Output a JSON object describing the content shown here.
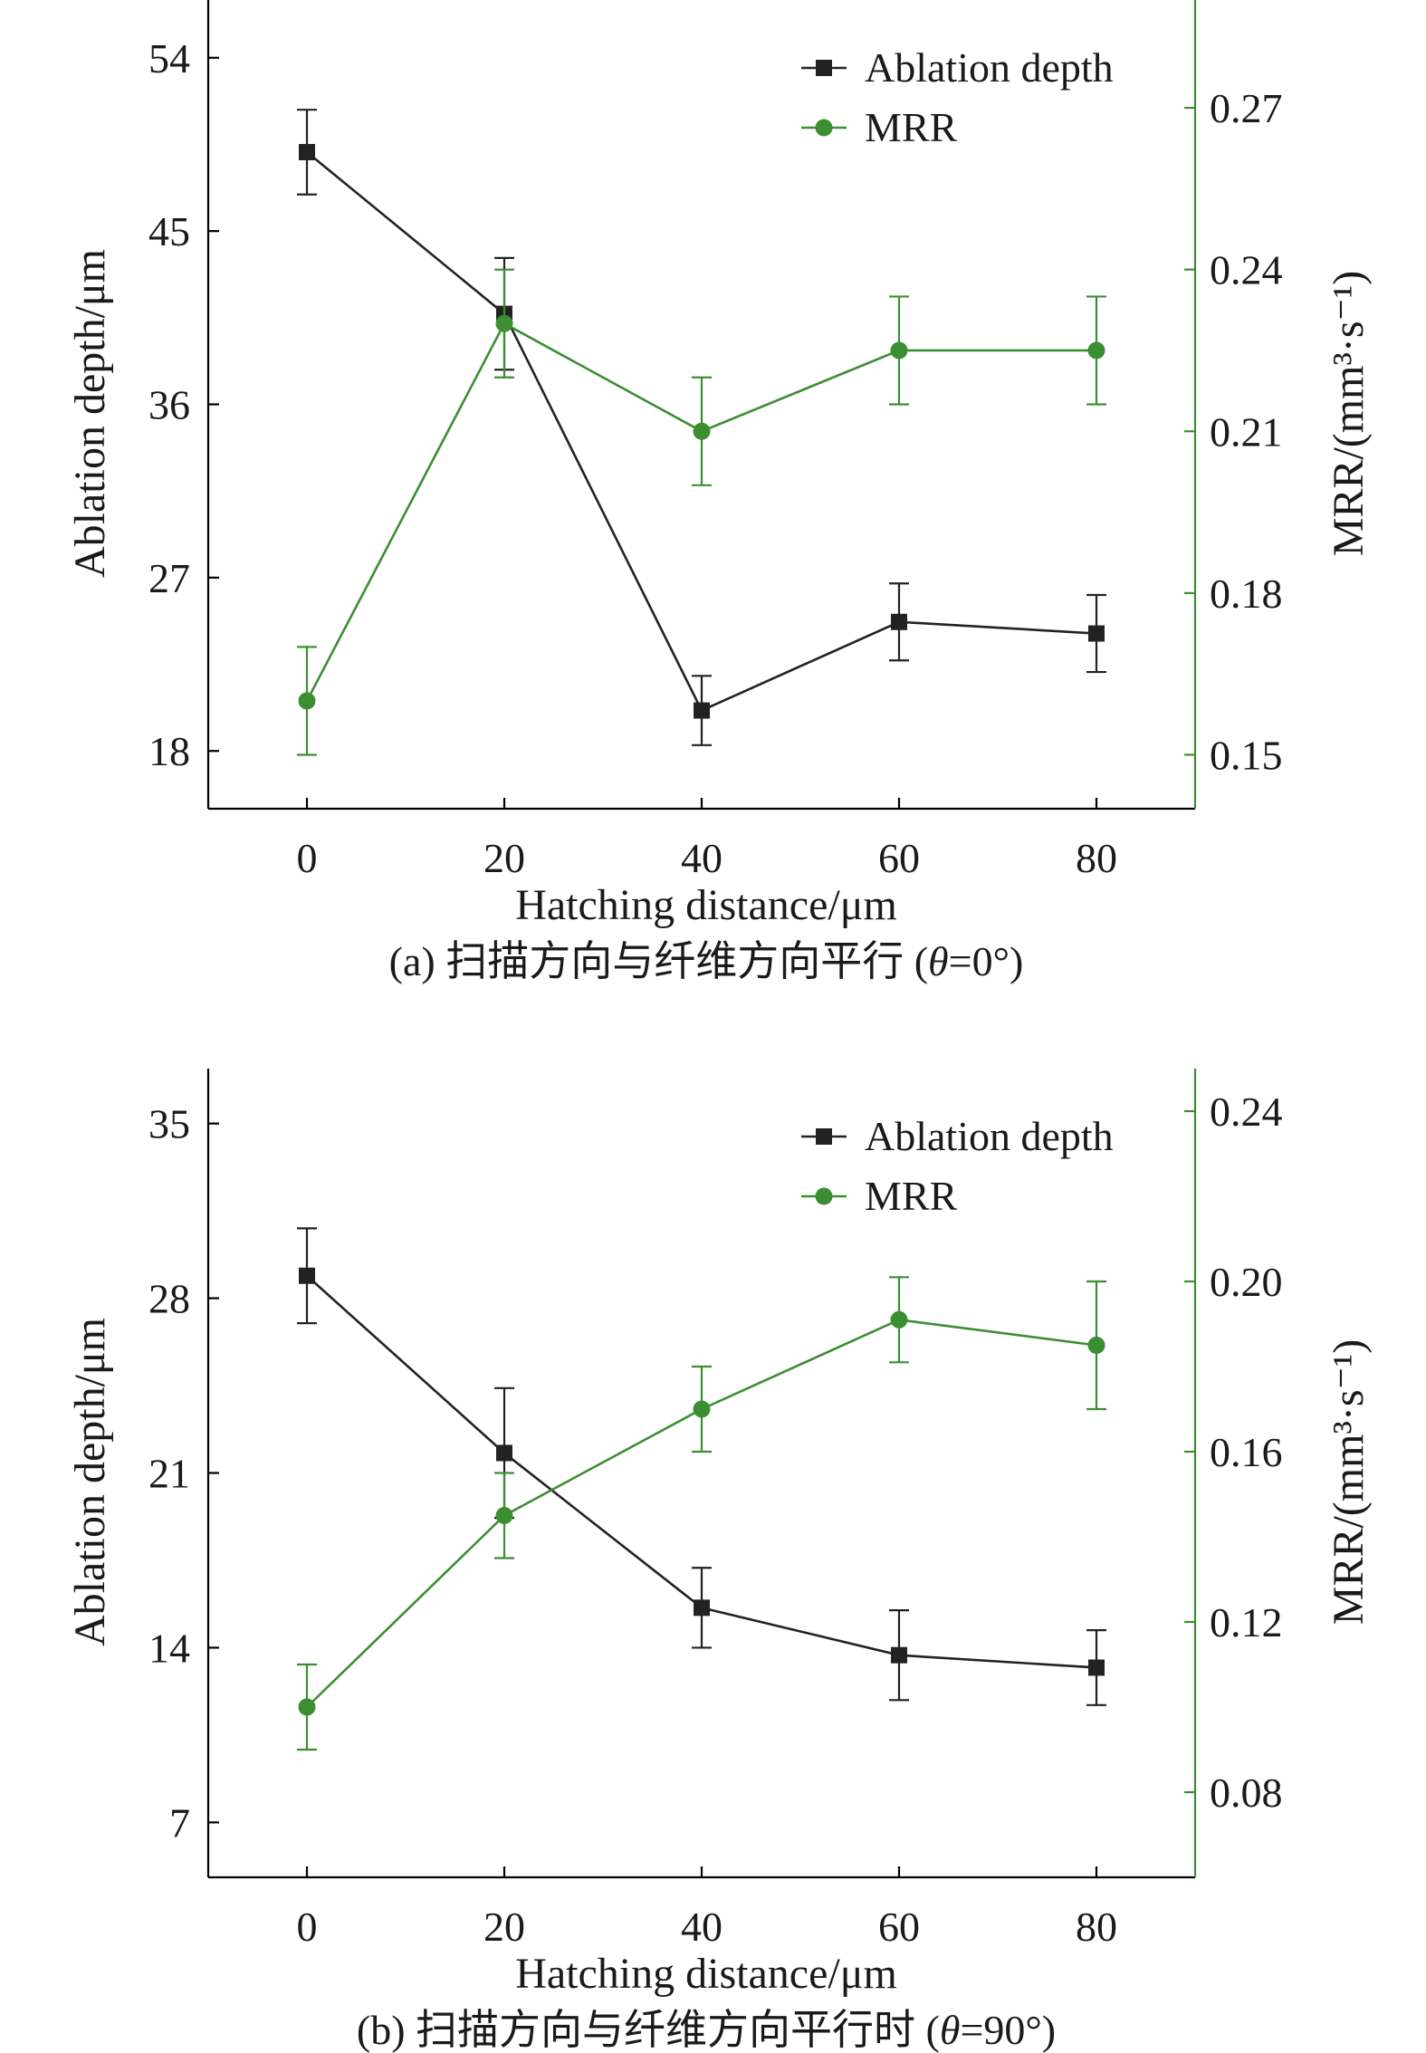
{
  "colors": {
    "series1": "#222222",
    "series2": "#3c8e32"
  },
  "chart_data": [
    {
      "type": "line",
      "caption": "(a) 扫描方向与纤维方向平行 (θ=0°)",
      "caption_parts": {
        "prefix": "(a) 扫描方向与纤维方向平行 (",
        "theta": "θ",
        "suffix": "=0°)"
      },
      "xlabel": "Hatching distance/μm",
      "ylabel": "Ablation depth/μm",
      "y2label": "MRR/(mm³·s⁻¹)",
      "x": [
        0,
        20,
        40,
        60,
        80
      ],
      "xticks": [
        "0",
        "20",
        "40",
        "60",
        "80"
      ],
      "xlim": [
        -10,
        90
      ],
      "ylim": [
        15,
        57
      ],
      "yticks": [
        18,
        27,
        36,
        45,
        54
      ],
      "ytick_labels": [
        "18",
        "27",
        "36",
        "45",
        "54"
      ],
      "y2lim": [
        0.14,
        0.29
      ],
      "y2ticks": [
        0.15,
        0.18,
        0.21,
        0.24,
        0.27
      ],
      "y2tick_labels": [
        "0.15",
        "0.18",
        "0.21",
        "0.24",
        "0.27"
      ],
      "legend": {
        "placement": "top-right",
        "entries": [
          "Ablation depth",
          "MRR"
        ]
      },
      "series": [
        {
          "name": "Ablation depth",
          "axis": "left",
          "marker": "square",
          "values": [
            49.1,
            40.7,
            20.1,
            24.7,
            24.1
          ],
          "errors": [
            2.2,
            2.9,
            1.8,
            2.0,
            2.0
          ]
        },
        {
          "name": "MRR",
          "axis": "right",
          "marker": "circle",
          "values": [
            0.16,
            0.23,
            0.21,
            0.225,
            0.225
          ],
          "errors": [
            0.01,
            0.01,
            0.01,
            0.01,
            0.01
          ]
        }
      ]
    },
    {
      "type": "line",
      "caption": "(b) 扫描方向与纤维方向平行时 (θ=90°)",
      "caption_parts": {
        "prefix": "(b) 扫描方向与纤维方向平行时 (",
        "theta": "θ",
        "suffix": "=90°)"
      },
      "xlabel": "Hatching distance/μm",
      "ylabel": "Ablation depth/μm",
      "y2label": "MRR/(mm³·s⁻¹)",
      "x": [
        0,
        20,
        40,
        60,
        80
      ],
      "xticks": [
        "0",
        "20",
        "40",
        "60",
        "80"
      ],
      "xlim": [
        -10,
        90
      ],
      "ylim": [
        4.8,
        37.2
      ],
      "yticks": [
        7,
        14,
        21,
        28,
        35
      ],
      "ytick_labels": [
        "7",
        "14",
        "21",
        "28",
        "35"
      ],
      "y2lim": [
        0.06,
        0.25
      ],
      "y2ticks": [
        0.08,
        0.12,
        0.16,
        0.2,
        0.24
      ],
      "y2tick_labels": [
        "0.08",
        "0.12",
        "0.16",
        "0.20",
        "0.24"
      ],
      "legend": {
        "placement": "top-right",
        "entries": [
          "Ablation depth",
          "MRR"
        ]
      },
      "series": [
        {
          "name": "Ablation depth",
          "axis": "left",
          "marker": "square",
          "values": [
            28.9,
            21.8,
            15.6,
            13.7,
            13.2
          ],
          "errors": [
            1.9,
            2.6,
            1.6,
            1.8,
            1.5
          ]
        },
        {
          "name": "MRR",
          "axis": "right",
          "marker": "circle",
          "values": [
            0.1,
            0.145,
            0.17,
            0.191,
            0.185
          ],
          "errors": [
            0.01,
            0.01,
            0.01,
            0.01,
            0.015
          ]
        }
      ]
    }
  ]
}
